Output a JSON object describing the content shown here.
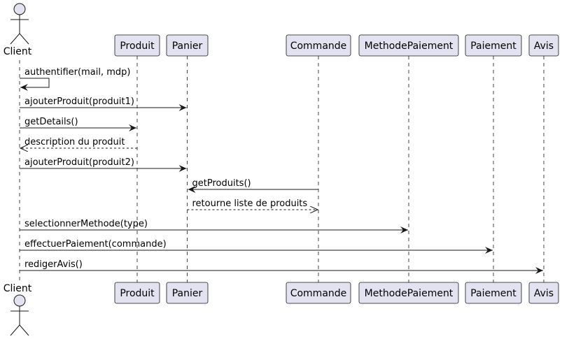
{
  "actor": {
    "name": "Client"
  },
  "participants": [
    {
      "name": "Produit"
    },
    {
      "name": "Panier"
    },
    {
      "name": "Commande"
    },
    {
      "name": "MethodePaiement"
    },
    {
      "name": "Paiement"
    },
    {
      "name": "Avis"
    }
  ],
  "messages": [
    {
      "label": "authentifier(mail, mdp)",
      "from": "Client",
      "to": "Client",
      "kind": "self"
    },
    {
      "label": "ajouterProduit(produit1)",
      "from": "Client",
      "to": "Panier",
      "kind": "sync"
    },
    {
      "label": "getDetails()",
      "from": "Client",
      "to": "Produit",
      "kind": "sync"
    },
    {
      "label": "description du produit",
      "from": "Produit",
      "to": "Client",
      "kind": "return"
    },
    {
      "label": "ajouterProduit(produit2)",
      "from": "Client",
      "to": "Panier",
      "kind": "sync"
    },
    {
      "label": "getProduits()",
      "from": "Commande",
      "to": "Panier",
      "kind": "sync"
    },
    {
      "label": "retourne liste de produits",
      "from": "Panier",
      "to": "Commande",
      "kind": "return"
    },
    {
      "label": "selectionnerMethode(type)",
      "from": "Client",
      "to": "MethodePaiement",
      "kind": "sync"
    },
    {
      "label": "effectuerPaiement(commande)",
      "from": "Client",
      "to": "Paiement",
      "kind": "sync"
    },
    {
      "label": "redigerAvis()",
      "from": "Client",
      "to": "Avis",
      "kind": "sync"
    }
  ],
  "colors": {
    "box_fill": "#e2e2f0",
    "box_stroke": "#181818",
    "lifeline": "#181818",
    "arrow": "#181818"
  }
}
